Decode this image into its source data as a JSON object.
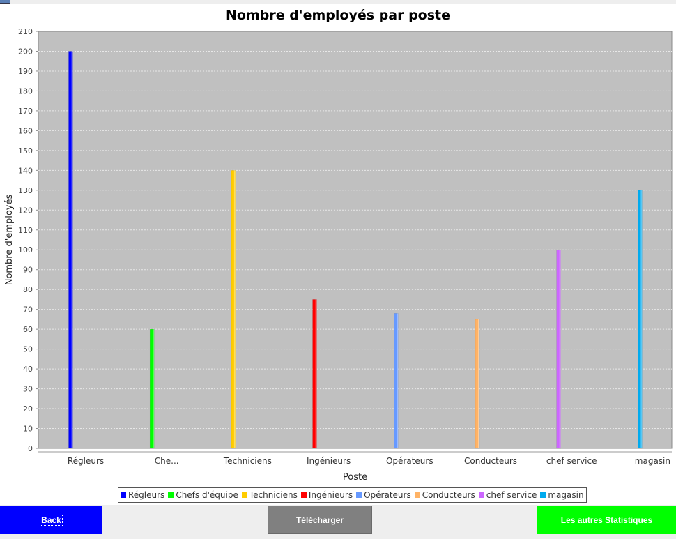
{
  "chart_data": {
    "type": "bar",
    "title": "Nombre d'employés par poste",
    "xlabel": "Poste",
    "ylabel": "Nombre d'employés",
    "ylim": [
      0,
      210
    ],
    "ytick_step": 10,
    "grid": true,
    "legend_position": "bottom",
    "categories": [
      "Régleurs",
      "Che...",
      "Techniciens",
      "Ingénieurs",
      "Opérateurs",
      "Conducteurs",
      "chef service",
      "magasin"
    ],
    "series": [
      {
        "name": "Régleurs",
        "values": [
          200,
          null,
          null,
          null,
          null,
          null,
          null,
          null
        ],
        "color": "#0000ff"
      },
      {
        "name": "Chefs d'équipe",
        "values": [
          null,
          60,
          null,
          null,
          null,
          null,
          null,
          null
        ],
        "color": "#00ff00"
      },
      {
        "name": "Techniciens",
        "values": [
          null,
          null,
          140,
          null,
          null,
          null,
          null,
          null
        ],
        "color": "#ffcc00"
      },
      {
        "name": "Ingénieurs",
        "values": [
          null,
          null,
          null,
          75,
          null,
          null,
          null,
          null
        ],
        "color": "#ff0000"
      },
      {
        "name": "Opérateurs",
        "values": [
          null,
          null,
          null,
          null,
          68,
          null,
          null,
          null
        ],
        "color": "#6699ff"
      },
      {
        "name": "Conducteurs",
        "values": [
          null,
          null,
          null,
          null,
          null,
          65,
          null,
          null
        ],
        "color": "#ffb366"
      },
      {
        "name": "chef service",
        "values": [
          null,
          null,
          null,
          null,
          null,
          null,
          100,
          null
        ],
        "color": "#cc66ff"
      },
      {
        "name": "magasin",
        "values": [
          null,
          null,
          null,
          null,
          null,
          null,
          null,
          130
        ],
        "color": "#00aaee"
      }
    ],
    "plot_background": "#c0c0c0"
  },
  "buttons": {
    "back": "Back",
    "download": "Télécharger",
    "stats": "Les autres Statistiques"
  }
}
